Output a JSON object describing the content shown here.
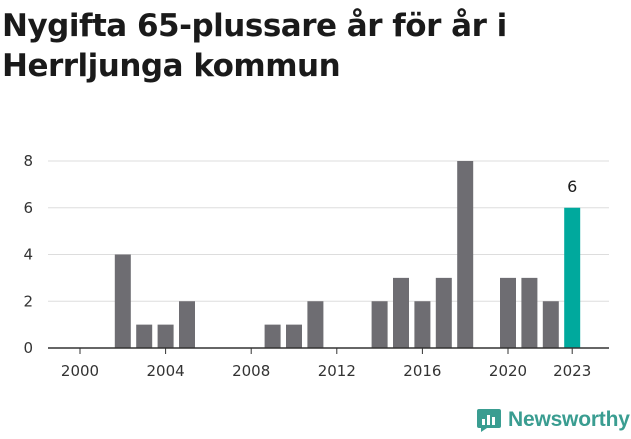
{
  "title": "Nygifta 65-plussare år för år i Herrljunga kommun",
  "brand": {
    "name": "Newsworthy",
    "icon": "newsworthy-logo-icon",
    "color": "#3a9d91"
  },
  "colors": {
    "bar": "#6e6d72",
    "highlight": "#00a99d",
    "grid": "#dddddd",
    "axis": "#333333"
  },
  "chart_data": {
    "type": "bar",
    "title": "Nygifta 65-plussare år för år i Herrljunga kommun",
    "xlabel": "",
    "ylabel": "",
    "categories": [
      "2000",
      "2001",
      "2002",
      "2003",
      "2004",
      "2005",
      "2006",
      "2007",
      "2008",
      "2009",
      "2010",
      "2011",
      "2012",
      "2013",
      "2014",
      "2015",
      "2016",
      "2017",
      "2018",
      "2019",
      "2020",
      "2021",
      "2022",
      "2023"
    ],
    "values": [
      0,
      0,
      4,
      1,
      1,
      2,
      0,
      0,
      0,
      1,
      1,
      2,
      0,
      0,
      2,
      3,
      2,
      3,
      8,
      0,
      3,
      3,
      2,
      6
    ],
    "x_tick_labels": [
      "2000",
      "2004",
      "2008",
      "2012",
      "2016",
      "2020",
      "2023"
    ],
    "y_ticks": [
      0,
      2,
      4,
      6,
      8
    ],
    "ylim": [
      0,
      8
    ],
    "grid": true,
    "highlight": {
      "category": "2023",
      "label": "6"
    }
  }
}
